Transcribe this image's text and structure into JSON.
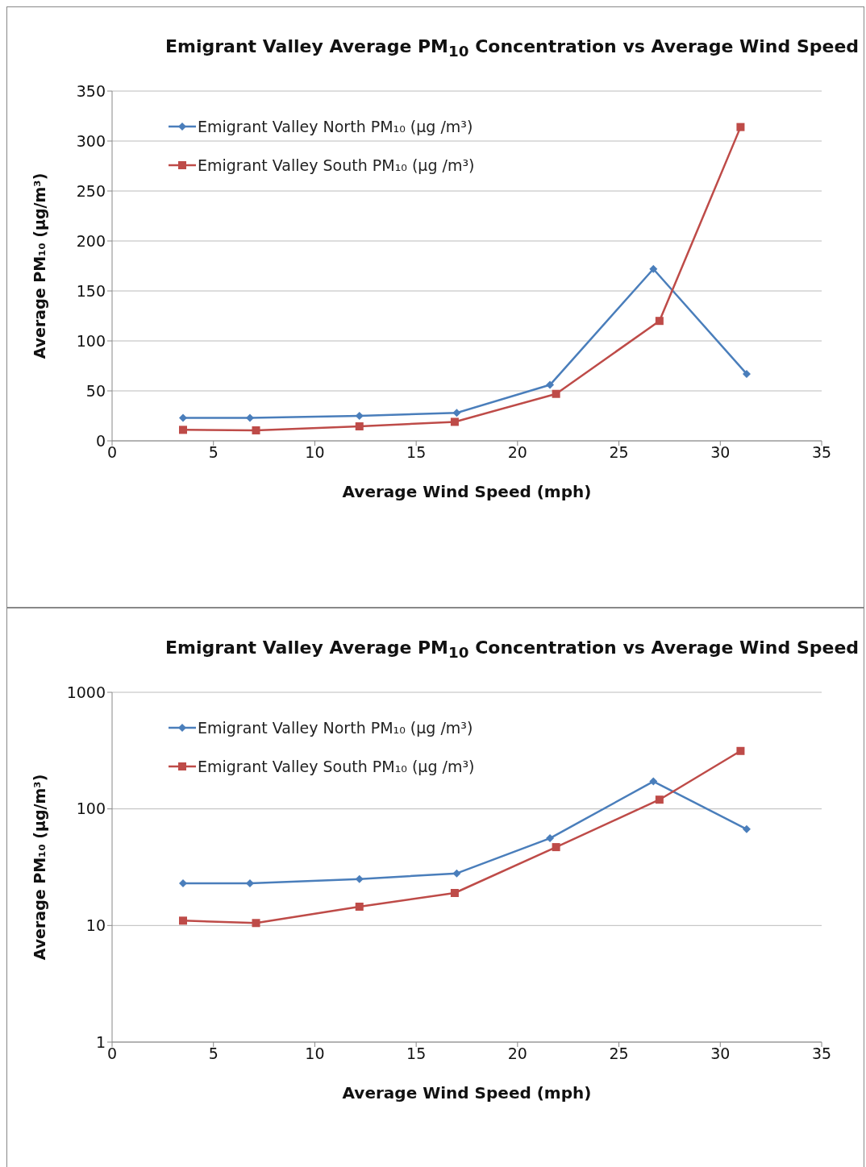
{
  "chart_data": [
    {
      "type": "line",
      "title": "Emigrant Valley Average PM$_{10}$ Concentration vs Average Wind Speed",
      "xlabel": "Average Wind Speed (mph)",
      "ylabel": "Average PM₁₀ (µg/m³)",
      "xlim": [
        0,
        35
      ],
      "xticks": [
        0,
        5,
        10,
        15,
        20,
        25,
        30,
        35
      ],
      "ylim": [
        0,
        350
      ],
      "yticks": [
        0,
        50,
        100,
        150,
        200,
        250,
        300,
        350
      ],
      "grid": "y",
      "legend": "top left",
      "series": [
        {
          "name": "Emigrant Valley North PM₁₀ (µg /m³)",
          "color": "#4a7ebb",
          "marker": "diamond",
          "x": [
            3.5,
            6.8,
            12.2,
            17.0,
            21.6,
            26.7,
            31.3
          ],
          "values": [
            23,
            23,
            25,
            28,
            56,
            172,
            67
          ]
        },
        {
          "name": "Emigrant Valley South PM₁₀ (µg /m³)",
          "color": "#be4b48",
          "marker": "square",
          "x": [
            3.5,
            7.1,
            12.2,
            16.9,
            21.9,
            27.0,
            31.0
          ],
          "values": [
            11,
            10.5,
            14.5,
            19,
            47,
            120,
            314
          ]
        }
      ]
    },
    {
      "type": "line",
      "title": "Emigrant Valley Average PM$_{10}$ Concentration vs Average Wind Speed",
      "xlabel": "Average Wind Speed (mph)",
      "ylabel": "Average PM₁₀ (µg/m³)",
      "xlim": [
        0,
        35
      ],
      "xticks": [
        0,
        5,
        10,
        15,
        20,
        25,
        30,
        35
      ],
      "ylim": [
        1,
        1000
      ],
      "yticks": [
        1,
        10,
        100,
        1000
      ],
      "log": "y",
      "grid": "y",
      "legend": "top left",
      "series": [
        {
          "name": "Emigrant Valley North PM₁₀ (µg /m³)",
          "color": "#4a7ebb",
          "marker": "diamond",
          "x": [
            3.5,
            6.8,
            12.2,
            17.0,
            21.6,
            26.7,
            31.3
          ],
          "values": [
            23,
            23,
            25,
            28,
            56,
            172,
            67
          ]
        },
        {
          "name": "Emigrant Valley South PM₁₀ (µg /m³)",
          "color": "#be4b48",
          "marker": "square",
          "x": [
            3.5,
            7.1,
            12.2,
            16.9,
            21.9,
            27.0,
            31.0
          ],
          "values": [
            11,
            10.5,
            14.5,
            19,
            47,
            120,
            314
          ]
        }
      ]
    }
  ]
}
